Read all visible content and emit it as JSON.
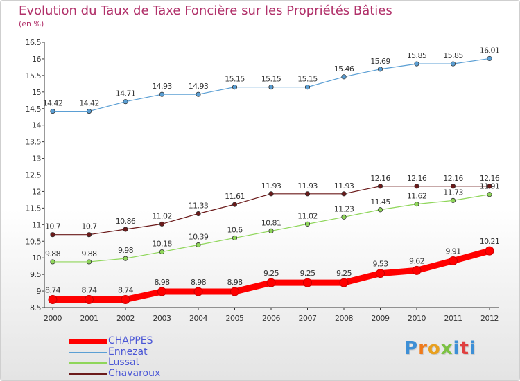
{
  "title": "Evolution du Taux de Taxe Foncière sur les Propriétés Bâties",
  "subtitle": "(en %)",
  "logo_text": "Proxiti",
  "chart_data": {
    "type": "line",
    "title": "Evolution du Taux de Taxe Foncière sur les Propriétés Bâties",
    "ylabel": "(en %)",
    "xlabel": "",
    "x": [
      "2000",
      "2001",
      "2002",
      "2003",
      "2004",
      "2005",
      "2006",
      "2007",
      "2008",
      "2009",
      "2010",
      "2011",
      "2012"
    ],
    "ylim": [
      8.5,
      16.5
    ],
    "yticks": [
      "8.5",
      "9",
      "9.5",
      "10",
      "10.5",
      "11",
      "11.5",
      "12",
      "12.5",
      "13",
      "13.5",
      "14",
      "14.5",
      "15",
      "15.5",
      "16",
      "16.5"
    ],
    "grid": false,
    "legend_position": "bottom-left",
    "series": [
      {
        "name": "Ennezat",
        "color": "#5b9fd4",
        "values": [
          14.42,
          14.42,
          14.71,
          14.93,
          14.93,
          15.15,
          15.15,
          15.15,
          15.46,
          15.69,
          15.85,
          15.85,
          16.01
        ],
        "labels": [
          "14.42",
          "14.42",
          "14.71",
          "14.93",
          "14.93",
          "15.15",
          "15.15",
          "15.15",
          "15.46",
          "15.69",
          "15.85",
          "15.85",
          "16.01"
        ]
      },
      {
        "name": "Chavaroux",
        "color": "#6b1a1a",
        "values": [
          10.7,
          10.7,
          10.86,
          11.02,
          11.33,
          11.61,
          11.93,
          11.93,
          11.93,
          12.16,
          12.16,
          12.16,
          12.16
        ],
        "labels": [
          "10.7",
          "10.7",
          "10.86",
          "11.02",
          "11.33",
          "11.61",
          "11.93",
          "11.93",
          "11.93",
          "12.16",
          "12.16",
          "12.16",
          "12.16"
        ]
      },
      {
        "name": "Lussat",
        "color": "#8fd65a",
        "values": [
          9.88,
          9.88,
          9.98,
          10.18,
          10.39,
          10.6,
          10.81,
          11.02,
          11.23,
          11.45,
          11.62,
          11.73,
          11.91
        ],
        "labels": [
          "9.88",
          "9.88",
          "9.98",
          "10.18",
          "10.39",
          "10.6",
          "10.81",
          "11.02",
          "11.23",
          "11.45",
          "11.62",
          "11.73",
          "11.91"
        ]
      },
      {
        "name": "CHAPPES",
        "color": "#ff0000",
        "values": [
          8.74,
          8.74,
          8.74,
          8.98,
          8.98,
          8.98,
          9.25,
          9.25,
          9.25,
          9.53,
          9.62,
          9.91,
          10.21
        ],
        "labels": [
          "8.74",
          "8.74",
          "8.74",
          "8.98",
          "8.98",
          "8.98",
          "9.25",
          "9.25",
          "9.25",
          "9.53",
          "9.62",
          "9.91",
          "10.21"
        ]
      }
    ],
    "legend_order": [
      "CHAPPES",
      "Ennezat",
      "Lussat",
      "Chavaroux"
    ]
  }
}
